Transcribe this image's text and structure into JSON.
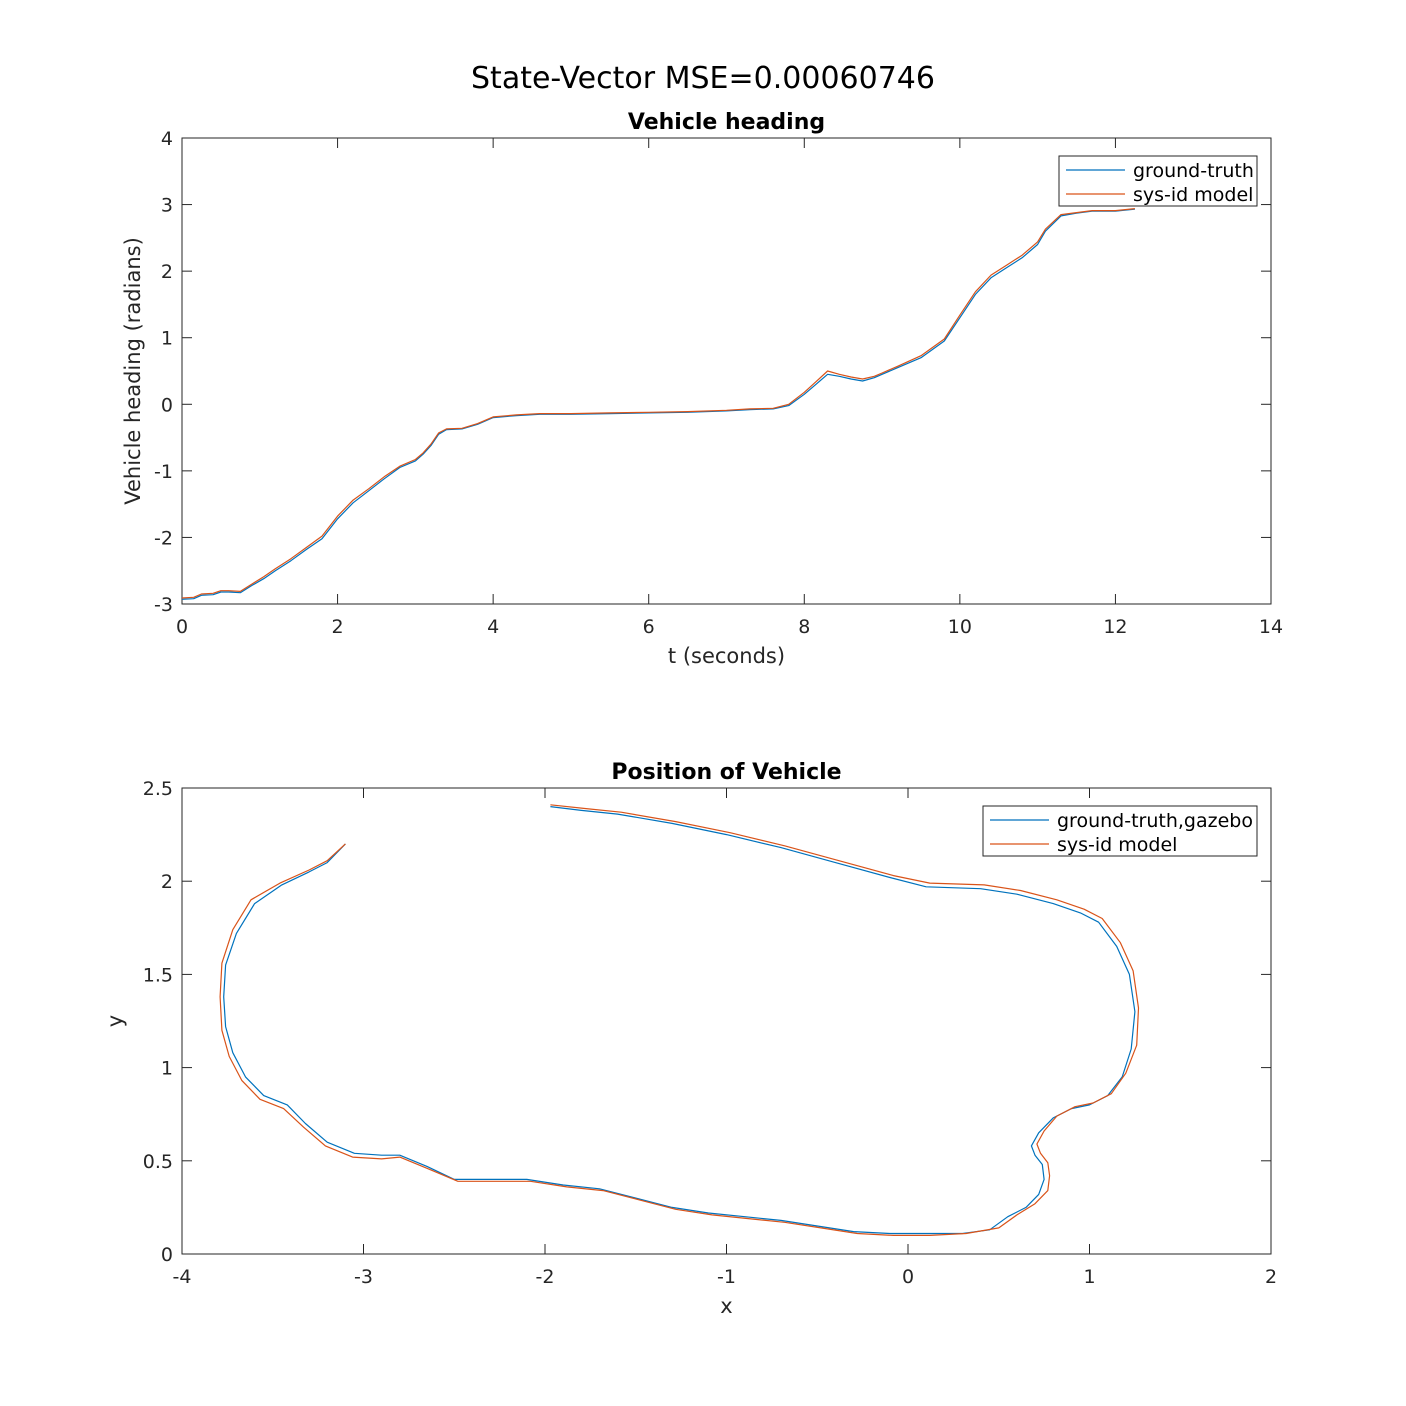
{
  "figure": {
    "suptitle": "State-Vector MSE=0.00060746"
  },
  "chart_data": [
    {
      "type": "line",
      "title": "Vehicle heading",
      "xlabel": "t (seconds)",
      "ylabel": "Vehicle heading (radians)",
      "xlim": [
        0,
        14
      ],
      "ylim": [
        -3,
        4
      ],
      "xticks": [
        0,
        2,
        4,
        6,
        8,
        10,
        12,
        14
      ],
      "yticks": [
        -3,
        -2,
        -1,
        0,
        1,
        2,
        3,
        4
      ],
      "xtick_labels": [
        "0",
        "2",
        "4",
        "6",
        "8",
        "10",
        "12",
        "14"
      ],
      "ytick_labels": [
        "-3",
        "-2",
        "-1",
        "0",
        "1",
        "2",
        "3",
        "4"
      ],
      "legend": "top-right",
      "grid": false,
      "series": [
        {
          "name": "ground-truth",
          "color": "#0072BD",
          "x": [
            0,
            0.15,
            0.25,
            0.4,
            0.5,
            0.6,
            0.75,
            0.9,
            1.05,
            1.2,
            1.4,
            1.6,
            1.8,
            2.0,
            2.2,
            2.4,
            2.6,
            2.8,
            3.0,
            3.1,
            3.2,
            3.3,
            3.4,
            3.6,
            3.8,
            4.0,
            4.3,
            4.6,
            5.0,
            5.5,
            6.0,
            6.5,
            7.0,
            7.3,
            7.6,
            7.8,
            8.0,
            8.15,
            8.3,
            8.45,
            8.6,
            8.75,
            8.9,
            9.0,
            9.2,
            9.5,
            9.8,
            10.0,
            10.2,
            10.4,
            10.6,
            10.8,
            11.0,
            11.1,
            11.3,
            11.5,
            11.7,
            12.0,
            12.25
          ],
          "y": [
            -2.93,
            -2.92,
            -2.87,
            -2.86,
            -2.82,
            -2.82,
            -2.83,
            -2.72,
            -2.62,
            -2.5,
            -2.35,
            -2.18,
            -2.02,
            -1.72,
            -1.48,
            -1.3,
            -1.12,
            -0.95,
            -0.85,
            -0.75,
            -0.62,
            -0.45,
            -0.38,
            -0.37,
            -0.3,
            -0.2,
            -0.17,
            -0.15,
            -0.15,
            -0.14,
            -0.13,
            -0.12,
            -0.1,
            -0.08,
            -0.07,
            -0.02,
            0.15,
            0.3,
            0.45,
            0.42,
            0.38,
            0.35,
            0.4,
            0.45,
            0.55,
            0.7,
            0.95,
            1.3,
            1.65,
            1.9,
            2.05,
            2.2,
            2.4,
            2.6,
            2.83,
            2.87,
            2.9,
            2.9,
            2.93
          ]
        },
        {
          "name": "sys-id model",
          "color": "#D95319",
          "x": [
            0,
            0.15,
            0.25,
            0.4,
            0.5,
            0.6,
            0.75,
            0.9,
            1.05,
            1.2,
            1.4,
            1.6,
            1.8,
            2.0,
            2.2,
            2.4,
            2.6,
            2.8,
            3.0,
            3.1,
            3.2,
            3.3,
            3.4,
            3.6,
            3.8,
            4.0,
            4.3,
            4.6,
            5.0,
            5.5,
            6.0,
            6.5,
            7.0,
            7.3,
            7.6,
            7.8,
            8.0,
            8.15,
            8.3,
            8.45,
            8.6,
            8.75,
            8.9,
            9.0,
            9.2,
            9.5,
            9.8,
            10.0,
            10.2,
            10.4,
            10.6,
            10.8,
            11.0,
            11.1,
            11.3,
            11.5,
            11.7,
            12.0,
            12.25
          ],
          "y": [
            -2.91,
            -2.9,
            -2.85,
            -2.84,
            -2.8,
            -2.8,
            -2.81,
            -2.7,
            -2.59,
            -2.47,
            -2.32,
            -2.15,
            -1.98,
            -1.68,
            -1.44,
            -1.27,
            -1.09,
            -0.93,
            -0.83,
            -0.73,
            -0.6,
            -0.43,
            -0.37,
            -0.36,
            -0.29,
            -0.19,
            -0.16,
            -0.14,
            -0.14,
            -0.13,
            -0.12,
            -0.11,
            -0.09,
            -0.07,
            -0.06,
            0.0,
            0.18,
            0.34,
            0.5,
            0.45,
            0.41,
            0.38,
            0.42,
            0.47,
            0.57,
            0.73,
            0.98,
            1.34,
            1.69,
            1.94,
            2.09,
            2.24,
            2.44,
            2.63,
            2.85,
            2.88,
            2.91,
            2.91,
            2.94
          ]
        }
      ]
    },
    {
      "type": "line",
      "title": "Position of Vehicle",
      "xlabel": "x",
      "ylabel": "y",
      "xlim": [
        -4,
        2
      ],
      "ylim": [
        0,
        2.5
      ],
      "xticks": [
        -4,
        -3,
        -2,
        -1,
        0,
        1,
        2
      ],
      "yticks": [
        0,
        0.5,
        1,
        1.5,
        2,
        2.5
      ],
      "xtick_labels": [
        "-4",
        "-3",
        "-2",
        "-1",
        "0",
        "1",
        "2"
      ],
      "ytick_labels": [
        "0",
        "0.5",
        "1",
        "1.5",
        "2",
        "2.5"
      ],
      "legend": "top-right",
      "grid": false,
      "series": [
        {
          "name": "ground-truth,gazebo",
          "color": "#0072BD",
          "x": [
            -3.1,
            -3.2,
            -3.3,
            -3.45,
            -3.6,
            -3.7,
            -3.76,
            -3.77,
            -3.76,
            -3.72,
            -3.65,
            -3.55,
            -3.42,
            -3.32,
            -3.2,
            -3.05,
            -2.9,
            -2.8,
            -2.65,
            -2.5,
            -2.3,
            -2.1,
            -1.9,
            -1.7,
            -1.5,
            -1.3,
            -1.1,
            -0.9,
            -0.7,
            -0.5,
            -0.3,
            -0.1,
            0.1,
            0.3,
            0.45,
            0.55,
            0.65,
            0.72,
            0.75,
            0.74,
            0.7,
            0.68,
            0.72,
            0.8,
            0.9,
            1.0,
            1.1,
            1.18,
            1.23,
            1.25,
            1.22,
            1.15,
            1.05,
            0.95,
            0.8,
            0.6,
            0.4,
            0.1,
            -0.1,
            -0.4,
            -0.7,
            -1.0,
            -1.3,
            -1.6,
            -1.8,
            -1.97
          ],
          "y": [
            2.2,
            2.1,
            2.05,
            1.98,
            1.88,
            1.72,
            1.55,
            1.38,
            1.22,
            1.08,
            0.95,
            0.85,
            0.8,
            0.7,
            0.6,
            0.54,
            0.53,
            0.53,
            0.47,
            0.4,
            0.4,
            0.4,
            0.37,
            0.35,
            0.3,
            0.25,
            0.22,
            0.2,
            0.18,
            0.15,
            0.12,
            0.11,
            0.11,
            0.11,
            0.13,
            0.2,
            0.25,
            0.32,
            0.4,
            0.48,
            0.53,
            0.58,
            0.65,
            0.73,
            0.78,
            0.8,
            0.85,
            0.95,
            1.1,
            1.3,
            1.5,
            1.65,
            1.78,
            1.83,
            1.88,
            1.93,
            1.96,
            1.97,
            2.02,
            2.1,
            2.18,
            2.25,
            2.31,
            2.36,
            2.38,
            2.4
          ]
        },
        {
          "name": "sys-id model",
          "color": "#D95319",
          "x": [
            -3.1,
            -3.2,
            -3.3,
            -3.46,
            -3.62,
            -3.72,
            -3.78,
            -3.79,
            -3.78,
            -3.74,
            -3.67,
            -3.57,
            -3.44,
            -3.33,
            -3.21,
            -3.06,
            -2.9,
            -2.8,
            -2.65,
            -2.48,
            -2.28,
            -2.08,
            -1.88,
            -1.68,
            -1.48,
            -1.28,
            -1.08,
            -0.88,
            -0.68,
            -0.48,
            -0.28,
            -0.08,
            0.12,
            0.32,
            0.5,
            0.6,
            0.7,
            0.77,
            0.78,
            0.77,
            0.73,
            0.71,
            0.75,
            0.82,
            0.92,
            1.02,
            1.12,
            1.2,
            1.26,
            1.27,
            1.24,
            1.17,
            1.07,
            0.97,
            0.82,
            0.62,
            0.42,
            0.12,
            -0.08,
            -0.38,
            -0.68,
            -0.98,
            -1.28,
            -1.58,
            -1.78,
            -1.97
          ],
          "y": [
            2.2,
            2.11,
            2.06,
            1.99,
            1.9,
            1.74,
            1.56,
            1.38,
            1.2,
            1.06,
            0.93,
            0.83,
            0.78,
            0.68,
            0.58,
            0.52,
            0.51,
            0.52,
            0.46,
            0.39,
            0.39,
            0.39,
            0.36,
            0.34,
            0.29,
            0.24,
            0.21,
            0.19,
            0.17,
            0.14,
            0.11,
            0.1,
            0.1,
            0.11,
            0.14,
            0.21,
            0.27,
            0.34,
            0.42,
            0.49,
            0.54,
            0.59,
            0.66,
            0.74,
            0.79,
            0.81,
            0.86,
            0.97,
            1.12,
            1.32,
            1.52,
            1.67,
            1.8,
            1.85,
            1.9,
            1.95,
            1.98,
            1.99,
            2.03,
            2.11,
            2.19,
            2.26,
            2.32,
            2.37,
            2.39,
            2.41
          ]
        }
      ]
    }
  ]
}
